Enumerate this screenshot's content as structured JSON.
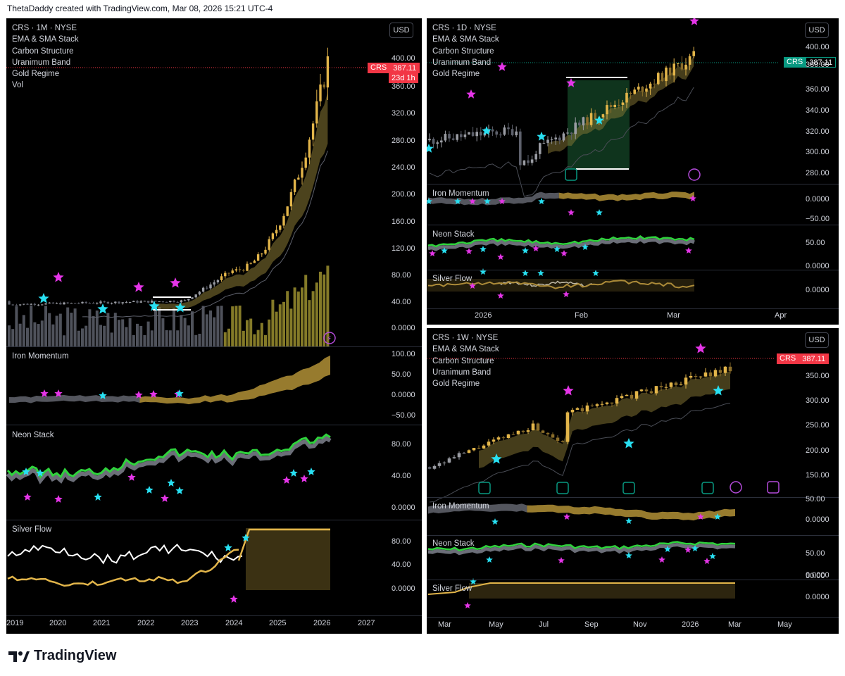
{
  "header": {
    "attribution": "ThetaDaddy created with TradingView.com, Mar 08, 2026 15:21 UTC-4"
  },
  "footer": {
    "brand": "TradingView",
    "logo_icon": "tradingview-logo-icon"
  },
  "colors": {
    "background": "#000000",
    "gold": "#e2b54a",
    "gray": "#787b86",
    "neon_green": "#2fd33c",
    "magenta": "#e535e8",
    "cyan": "#28e0f2",
    "price_red": "#f23645",
    "price_teal": "#089981",
    "white": "#ffffff"
  },
  "monthly": {
    "legend": [
      "CRS · 1M · NYSE",
      "EMA & SMA Stack",
      "Carbon Structure",
      "Uranimum Band",
      "Gold Regime",
      "Vol"
    ],
    "usd_label": "USD",
    "price_tag": {
      "symbol": "CRS",
      "value": "387.11",
      "countdown": "23d 1h"
    },
    "main_ticks": [
      "400.00",
      "360.00",
      "320.00",
      "280.00",
      "240.00",
      "200.00",
      "160.00",
      "120.00",
      "80.00",
      "40.00",
      "0.0000"
    ],
    "iron": {
      "title": "Iron Momentum",
      "ticks": [
        "100.00",
        "50.00",
        "0.0000",
        "−50.00"
      ]
    },
    "neon": {
      "title": "Neon Stack",
      "ticks": [
        "80.00",
        "40.00",
        "0.0000"
      ]
    },
    "silver": {
      "title": "Silver Flow",
      "ticks": [
        "80.00",
        "40.00",
        "0.0000"
      ]
    },
    "x_ticks": [
      "2019",
      "2020",
      "2021",
      "2022",
      "2023",
      "2024",
      "2025",
      "2026",
      "2027"
    ]
  },
  "daily": {
    "legend": [
      "CRS · 1D · NYSE",
      "EMA & SMA Stack",
      "Carbon Structure",
      "Uranimum Band",
      "Gold Regime"
    ],
    "usd_label": "USD",
    "price_tag": {
      "symbol": "CRS",
      "value": "387.11"
    },
    "main_ticks": [
      "400.00",
      "380.00",
      "360.00",
      "340.00",
      "320.00",
      "300.00",
      "280.00"
    ],
    "iron": {
      "title": "Iron Momentum",
      "ticks": [
        "0.0000",
        "−50.00"
      ]
    },
    "neon": {
      "title": "Neon Stack",
      "ticks": [
        "50.00",
        "0.0000"
      ]
    },
    "silver": {
      "title": "Silver Flow",
      "ticks": [
        "0.0000"
      ]
    },
    "x_ticks": [
      "2026",
      "Feb",
      "Mar",
      "Apr"
    ]
  },
  "weekly": {
    "legend": [
      "CRS · 1W · NYSE",
      "EMA & SMA Stack",
      "Carbon Structure",
      "Uranimum Band",
      "Gold Regime"
    ],
    "usd_label": "USD",
    "price_tag": {
      "symbol": "CRS",
      "value": "387.11"
    },
    "main_ticks": [
      "350.00",
      "300.00",
      "250.00",
      "200.00",
      "150.00"
    ],
    "iron": {
      "title": "Iron Momentum",
      "ticks": [
        "50.00",
        "0.0000"
      ]
    },
    "neon": {
      "title": "Neon Stack",
      "ticks": [
        "50.00",
        "0.0000"
      ]
    },
    "silver": {
      "title": "Silver Flow",
      "ticks": [
        "50.00",
        "0.0000"
      ]
    },
    "x_ticks": [
      "Mar",
      "May",
      "Jul",
      "Sep",
      "Nov",
      "2026",
      "Mar",
      "May"
    ]
  }
}
